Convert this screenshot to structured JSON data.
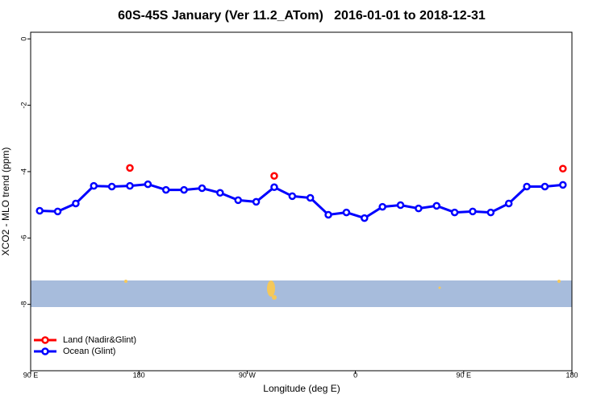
{
  "chart_data": {
    "type": "line",
    "title": "60S-45S January (Ver 11.2_ATom)   2016-01-01 to 2018-12-31",
    "xlabel": "Longitude (deg E)",
    "ylabel": "XCO2 - MLO trend (ppm)",
    "x": [
      97.5,
      112.5,
      127.5,
      142.5,
      157.5,
      172.5,
      187.5,
      202.5,
      217.5,
      232.5,
      247.5,
      262.5,
      277.5,
      292.5,
      307.5,
      322.5,
      337.5,
      352.5,
      367.5,
      382.5,
      397.5,
      412.5,
      427.5,
      442.5,
      457.5,
      472.5,
      487.5,
      502.5,
      517.5,
      532.5
    ],
    "series": [
      {
        "name": "Land (Nadir&Glint)",
        "color": "#ff0000",
        "values": [
          null,
          null,
          null,
          null,
          null,
          -3.89,
          null,
          null,
          null,
          null,
          null,
          null,
          null,
          -4.13,
          null,
          null,
          null,
          null,
          null,
          null,
          null,
          null,
          null,
          null,
          null,
          null,
          null,
          null,
          null,
          -3.91
        ]
      },
      {
        "name": "Ocean (Glint)",
        "color": "#0000ff",
        "values": [
          -5.18,
          -5.2,
          -4.96,
          -4.43,
          -4.45,
          -4.43,
          -4.38,
          -4.55,
          -4.55,
          -4.5,
          -4.64,
          -4.86,
          -4.91,
          -4.47,
          -4.74,
          -4.79,
          -5.3,
          -5.23,
          -5.4,
          -5.06,
          -5.01,
          -5.11,
          -5.03,
          -5.23,
          -5.2,
          -5.23,
          -4.96,
          -4.45,
          -4.45,
          -4.4
        ]
      }
    ],
    "xlim": [
      90,
      540
    ],
    "xticks": [
      {
        "value": 90,
        "label": "90 E"
      },
      180,
      {
        "value": 270,
        "label": "90 W"
      },
      {
        "value": 360,
        "label": "0"
      },
      {
        "value": 450,
        "label": "90 E"
      },
      {
        "value": 540,
        "label": "180"
      }
    ],
    "ylim": [
      -10,
      0.2
    ],
    "yticks": [
      0,
      -2,
      -4,
      -6,
      -8
    ],
    "legend": "bottomleft"
  }
}
